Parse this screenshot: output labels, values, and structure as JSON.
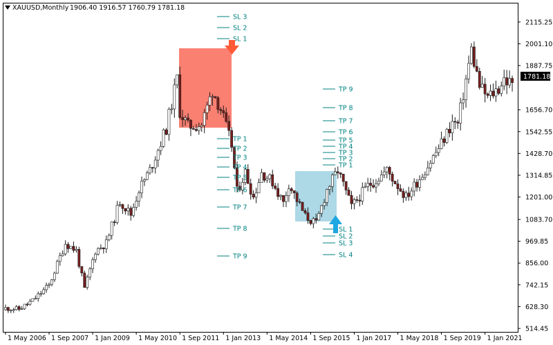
{
  "header": {
    "symbol": "XAUUSD,Monthly",
    "ohlc": "1906.40 1916.57 1760.79 1781.18"
  },
  "colors": {
    "candle_body": "#7a1f1f",
    "candle_wick": "#1a1a1a",
    "sell_box": "#fa8072",
    "buy_box": "#add8e6",
    "level_line": "#008080",
    "sell_arrow": "#ff5a36",
    "buy_arrow": "#1ea7e1"
  },
  "chart_data": {
    "type": "candlestick",
    "title": "XAUUSD,Monthly",
    "ylim": [
      514.45,
      2176.0
    ],
    "x_range": [
      "2006-04",
      "2021-12"
    ],
    "grid": false,
    "price_label": "1781.18",
    "y_ticks": [
      "2115.25",
      "2001.10",
      "1887.75",
      "1656.70",
      "1542.55",
      "1428.70",
      "1314.85",
      "1201.00",
      "1083.70",
      "969.85",
      "856.00",
      "742.15",
      "628.30",
      "514.45"
    ],
    "x_ticks": [
      "1 May 2006",
      "1 Sep 2007",
      "1 Jan 2009",
      "1 May 2010",
      "1 Sep 2011",
      "1 Jan 2013",
      "1 May 2014",
      "1 Sep 2015",
      "1 Jan 2017",
      "1 May 2018",
      "1 Sep 2019",
      "1 Jan 2021"
    ],
    "series": [
      {
        "name": "XAUUSD",
        "x": [
          "2006-05",
          "2006-10",
          "2007-03",
          "2007-09",
          "2008-03",
          "2008-07",
          "2008-10",
          "2009-02",
          "2009-06",
          "2009-11",
          "2010-03",
          "2010-06",
          "2010-10",
          "2011-04",
          "2011-08",
          "2011-09",
          "2011-12",
          "2012-05",
          "2012-09",
          "2012-12",
          "2013-04",
          "2013-06",
          "2013-09",
          "2013-12",
          "2014-03",
          "2014-07",
          "2014-11",
          "2015-01",
          "2015-07",
          "2015-11",
          "2016-03",
          "2016-07",
          "2016-12",
          "2017-06",
          "2017-09",
          "2018-01",
          "2018-08",
          "2019-02",
          "2019-06",
          "2019-09",
          "2020-01",
          "2020-03",
          "2020-08",
          "2020-11",
          "2021-02",
          "2021-06",
          "2021-08",
          "2021-11"
        ],
        "y": [
          620,
          615,
          660,
          740,
          960,
          920,
          720,
          920,
          960,
          1180,
          1110,
          1240,
          1340,
          1560,
          1820,
          1650,
          1570,
          1580,
          1760,
          1660,
          1470,
          1230,
          1330,
          1200,
          1330,
          1280,
          1170,
          1270,
          1100,
          1060,
          1240,
          1340,
          1150,
          1260,
          1290,
          1340,
          1200,
          1320,
          1410,
          1480,
          1590,
          1580,
          1970,
          1780,
          1720,
          1770,
          1820,
          1781
        ]
      }
    ],
    "annotations": {
      "sell_levels": [
        "SL 3",
        "SL 2",
        "SL 1",
        "TP 1",
        "TP 2",
        "TP 3",
        "TP 4",
        "TP 5",
        "TP 6",
        "TP 7",
        "TP 8",
        "TP 9"
      ],
      "buy_levels": [
        "TP 9",
        "TP 8",
        "TP 7",
        "TP 6",
        "TP 5",
        "TP 4",
        "TP 3",
        "TP 2",
        "TP 1",
        "SL 1",
        "SL 2",
        "SL 3",
        "SL 4"
      ]
    }
  }
}
